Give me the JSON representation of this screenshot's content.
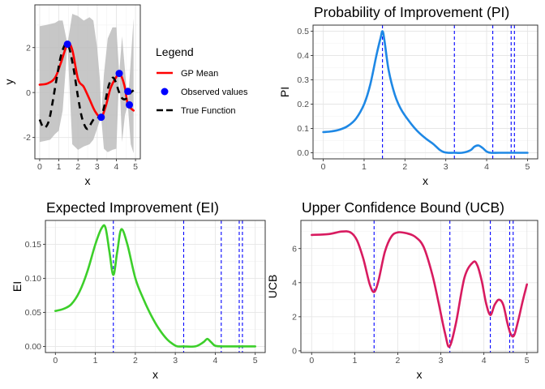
{
  "chart_data": [
    {
      "id": "gp",
      "type": "line",
      "title": "",
      "xlabel": "x",
      "ylabel": "y",
      "xlim": [
        -0.25,
        5.25
      ],
      "ylim": [
        -2.95,
        3.9
      ],
      "xticks": [
        0,
        1,
        2,
        3,
        4,
        5
      ],
      "yticks": [
        -2,
        0,
        2
      ],
      "grid": true,
      "legend": {
        "title": "Legend",
        "placement": "right",
        "entries": [
          {
            "label": "GP Mean",
            "color": "#ff0000",
            "style": "line"
          },
          {
            "label": "Observed values",
            "color": "#0000ff",
            "style": "point"
          },
          {
            "label": "True Function",
            "color": "#000000",
            "style": "dashed"
          }
        ]
      },
      "band": {
        "color": "#bdbdbd",
        "x": [
          0,
          0.3,
          0.55,
          0.8,
          1.0,
          1.2,
          1.45,
          1.7,
          2.0,
          2.3,
          2.6,
          2.8,
          3.0,
          3.15,
          3.21,
          3.35,
          3.55,
          3.8,
          4.0,
          4.15,
          4.3,
          4.45,
          4.6,
          4.75,
          4.9
        ],
        "upper": [
          2.95,
          3.0,
          3.05,
          3.1,
          3.2,
          3.2,
          2.15,
          3.5,
          3.4,
          3.2,
          3.35,
          3.2,
          2.0,
          0.5,
          -1.1,
          0.8,
          2.4,
          2.9,
          2.9,
          0.85,
          2.5,
          1.0,
          -0.55,
          1.4,
          3.3
        ],
        "lower": [
          -2.2,
          -2.15,
          -2.1,
          -1.85,
          -1.7,
          -0.8,
          2.15,
          -2.3,
          -2.55,
          -2.4,
          -2.3,
          -2.1,
          -1.6,
          -1.2,
          -1.1,
          -2.5,
          -2.65,
          -2.55,
          -2.5,
          0.85,
          -2.2,
          -1.0,
          -0.55,
          -2.3,
          -2.7
        ]
      },
      "series": [
        {
          "name": "GP Mean",
          "color": "#ff0000",
          "x": [
            0,
            0.4,
            0.8,
            1.1,
            1.45,
            1.7,
            2.0,
            2.3,
            2.6,
            2.9,
            3.21,
            3.45,
            3.7,
            4.0,
            4.15,
            4.3,
            4.45,
            4.6,
            4.75,
            4.9
          ],
          "y": [
            0.35,
            0.4,
            0.65,
            1.3,
            2.15,
            1.9,
            0.6,
            0.25,
            -0.3,
            -0.85,
            -1.1,
            -0.6,
            0.2,
            0.7,
            0.85,
            0.65,
            0.2,
            -0.55,
            -0.7,
            -0.8
          ]
        },
        {
          "name": "True Function",
          "color": "#000000",
          "dashed": true,
          "x": [
            0,
            0.15,
            0.3,
            0.5,
            0.7,
            0.9,
            1.1,
            1.3,
            1.45,
            1.6,
            1.8,
            2.0,
            2.2,
            2.4,
            2.55,
            2.7,
            2.9,
            3.05,
            3.21,
            3.4,
            3.6,
            3.8,
            3.95,
            4.15,
            4.3,
            4.45,
            4.6,
            4.75,
            4.9
          ],
          "y": [
            -1.2,
            -1.5,
            -1.55,
            -1.2,
            -0.3,
            0.7,
            1.6,
            2.1,
            2.15,
            1.8,
            0.9,
            -0.2,
            -1.1,
            -1.55,
            -1.6,
            -1.35,
            -1.1,
            -1.1,
            -1.1,
            -0.5,
            0.3,
            0.65,
            0.5,
            0.0,
            -0.25,
            -0.3,
            -0.2,
            0.0,
            0.1
          ]
        }
      ],
      "points": {
        "name": "Observed values",
        "color": "#0000ff",
        "x": [
          1.45,
          3.21,
          4.15,
          4.6,
          4.68
        ],
        "y": [
          2.15,
          -1.1,
          0.85,
          0.05,
          -0.55
        ]
      }
    },
    {
      "id": "pi",
      "type": "line",
      "title": "Probability of Improvement (PI)",
      "xlabel": "x",
      "ylabel": "PI",
      "xlim": [
        -0.25,
        5.25
      ],
      "ylim": [
        -0.025,
        0.525
      ],
      "xticks": [
        0,
        1,
        2,
        3,
        4,
        5
      ],
      "yticks": [
        0.0,
        0.1,
        0.2,
        0.3,
        0.4,
        0.5
      ],
      "ytick_labels": [
        "0.0",
        "0.1",
        "0.2",
        "0.3",
        "0.4",
        "0.5"
      ],
      "grid": true,
      "vlines": [
        1.45,
        3.21,
        4.15,
        4.6,
        4.68
      ],
      "vline_color": "#0000ff",
      "series": [
        {
          "color": "#1e88e5",
          "x": [
            0,
            0.2,
            0.4,
            0.6,
            0.8,
            1.0,
            1.15,
            1.3,
            1.4,
            1.45,
            1.5,
            1.6,
            1.75,
            1.9,
            2.1,
            2.3,
            2.5,
            2.7,
            2.85,
            2.95,
            3.05,
            3.2,
            3.4,
            3.6,
            3.7,
            3.8,
            3.9,
            4.0,
            4.1,
            4.3,
            4.6,
            5.0
          ],
          "y": [
            0.085,
            0.088,
            0.095,
            0.11,
            0.14,
            0.2,
            0.28,
            0.4,
            0.47,
            0.5,
            0.46,
            0.34,
            0.24,
            0.18,
            0.13,
            0.09,
            0.06,
            0.035,
            0.012,
            0.003,
            0.0,
            0.0,
            0.0,
            0.01,
            0.025,
            0.03,
            0.02,
            0.005,
            0.0,
            0.0,
            0.0,
            0.0
          ]
        }
      ]
    },
    {
      "id": "ei",
      "type": "line",
      "title": "Expected Improvement (EI)",
      "xlabel": "x",
      "ylabel": "EI",
      "xlim": [
        -0.25,
        5.25
      ],
      "ylim": [
        -0.009,
        0.185
      ],
      "xticks": [
        0,
        1,
        2,
        3,
        4,
        5
      ],
      "yticks": [
        0.0,
        0.05,
        0.1,
        0.15
      ],
      "ytick_labels": [
        "0.00",
        "0.05",
        "0.10",
        "0.15"
      ],
      "grid": true,
      "vlines": [
        1.45,
        3.21,
        4.15,
        4.6,
        4.68
      ],
      "vline_color": "#0000ff",
      "series": [
        {
          "color": "#3ccf2a",
          "x": [
            0,
            0.2,
            0.4,
            0.6,
            0.8,
            1.0,
            1.15,
            1.25,
            1.35,
            1.45,
            1.55,
            1.65,
            1.8,
            2.0,
            2.2,
            2.4,
            2.6,
            2.8,
            2.95,
            3.05,
            3.2,
            3.5,
            3.7,
            3.8,
            3.9,
            4.0,
            4.2,
            4.6,
            5.0
          ],
          "y": [
            0.052,
            0.055,
            0.062,
            0.08,
            0.11,
            0.15,
            0.173,
            0.175,
            0.14,
            0.105,
            0.14,
            0.172,
            0.15,
            0.1,
            0.07,
            0.045,
            0.025,
            0.01,
            0.003,
            0.0,
            0.0,
            0.0,
            0.006,
            0.011,
            0.006,
            0.001,
            0.0,
            0.0,
            0.0
          ]
        }
      ]
    },
    {
      "id": "ucb",
      "type": "line",
      "title": "Upper Confidence Bound (UCB)",
      "xlabel": "x",
      "ylabel": "UCB",
      "xlim": [
        -0.25,
        5.25
      ],
      "ylim": [
        -0.1,
        7.65
      ],
      "xticks": [
        0,
        1,
        2,
        3,
        4,
        5
      ],
      "yticks": [
        0,
        2,
        4,
        6
      ],
      "grid": true,
      "vlines": [
        1.45,
        3.21,
        4.15,
        4.6,
        4.68
      ],
      "vline_color": "#0000ff",
      "series": [
        {
          "color": "#d81b60",
          "x": [
            0,
            0.4,
            0.7,
            0.9,
            1.05,
            1.2,
            1.35,
            1.45,
            1.55,
            1.7,
            1.85,
            2.0,
            2.2,
            2.4,
            2.6,
            2.8,
            2.95,
            3.1,
            3.2,
            3.35,
            3.55,
            3.75,
            3.85,
            3.95,
            4.05,
            4.15,
            4.25,
            4.35,
            4.45,
            4.55,
            4.62,
            4.7,
            4.8,
            4.9,
            5.0
          ],
          "y": [
            6.8,
            6.85,
            7.0,
            6.95,
            6.5,
            5.4,
            3.9,
            3.45,
            4.1,
            5.8,
            6.7,
            6.95,
            6.9,
            6.7,
            6.1,
            4.5,
            2.8,
            1.0,
            0.25,
            1.6,
            4.3,
            5.2,
            5.0,
            4.1,
            2.8,
            2.1,
            2.7,
            3.0,
            2.7,
            1.6,
            1.0,
            0.9,
            1.8,
            2.9,
            3.9
          ]
        }
      ]
    }
  ]
}
